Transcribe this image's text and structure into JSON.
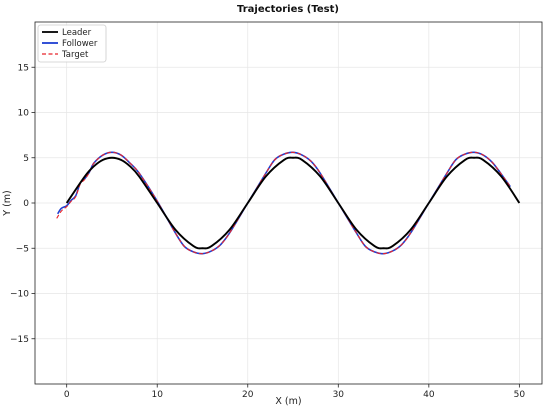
{
  "chart_data": {
    "type": "line",
    "title": "Trajectories (Test)",
    "xlabel": "X (m)",
    "ylabel": "Y (m)",
    "xlim": [
      -3.5,
      52.5
    ],
    "ylim": [
      -20,
      20
    ],
    "xticks": [
      0,
      10,
      20,
      30,
      40,
      50
    ],
    "yticks": [
      -15,
      -10,
      -5,
      0,
      5,
      10,
      15
    ],
    "grid": true,
    "legend_position": "top-left",
    "series": [
      {
        "name": "Leader",
        "color": "#000000",
        "style": "solid",
        "x": [
          0,
          2,
          3,
          4,
          5,
          6,
          7,
          8,
          10,
          12,
          14,
          15,
          16,
          18,
          20,
          22,
          24,
          25,
          26,
          28,
          30,
          32,
          34,
          35,
          36,
          38,
          40,
          42,
          44,
          45,
          46,
          48,
          50
        ],
        "y": [
          0,
          2.94,
          4.05,
          4.76,
          5.0,
          4.76,
          4.05,
          2.94,
          0,
          -2.94,
          -4.76,
          -5.0,
          -4.76,
          -2.94,
          0,
          2.94,
          4.76,
          5.0,
          4.76,
          2.94,
          0,
          -2.94,
          -4.76,
          -5.0,
          -4.76,
          -2.94,
          0,
          2.94,
          4.76,
          5.0,
          4.76,
          2.94,
          0
        ]
      },
      {
        "name": "Follower",
        "color": "#1f3fd1",
        "style": "solid",
        "x": [
          -1.0,
          -0.6,
          0.0,
          0.5,
          1.0,
          1.5,
          2.0,
          2.5,
          3.0,
          4.0,
          5.0,
          6.0,
          7.0,
          8.0,
          10.0,
          12.0,
          13.0,
          14.0,
          15.0,
          16.0,
          17.0,
          18.0,
          20.0,
          22.0,
          23.0,
          24.0,
          25.0,
          26.0,
          27.0,
          28.0,
          30.0,
          32.0,
          33.0,
          34.0,
          35.0,
          36.0,
          37.0,
          38.0,
          40.0,
          42.0,
          43.0,
          44.0,
          45.0,
          46.0,
          47.0,
          48.0,
          49.0
        ],
        "y": [
          -1.2,
          -0.6,
          -0.3,
          0.3,
          0.8,
          2.2,
          2.7,
          3.4,
          4.4,
          5.3,
          5.6,
          5.3,
          4.4,
          3.3,
          0.2,
          -3.3,
          -4.8,
          -5.4,
          -5.6,
          -5.3,
          -4.6,
          -3.3,
          0.0,
          3.3,
          4.8,
          5.4,
          5.6,
          5.3,
          4.6,
          3.3,
          0.0,
          -3.3,
          -4.8,
          -5.4,
          -5.6,
          -5.3,
          -4.6,
          -3.3,
          0.0,
          3.3,
          4.8,
          5.4,
          5.6,
          5.3,
          4.5,
          3.2,
          1.8
        ]
      },
      {
        "name": "Target",
        "color": "#e8242a",
        "style": "dashed",
        "x": [
          -1.1,
          -0.6,
          0.0,
          0.5,
          1.0,
          1.5,
          2.0,
          2.5,
          3.0,
          4.0,
          5.0,
          6.0,
          7.0,
          8.0,
          10.0,
          12.0,
          13.0,
          14.0,
          15.0,
          16.0,
          17.0,
          18.0,
          20.0,
          22.0,
          23.0,
          24.0,
          25.0,
          26.0,
          27.0,
          28.0,
          30.0,
          32.0,
          33.0,
          34.0,
          35.0,
          36.0,
          37.0,
          38.0,
          40.0,
          42.0,
          43.0,
          44.0,
          45.0,
          46.0,
          47.0,
          48.0,
          49.0
        ],
        "y": [
          -1.7,
          -0.9,
          -0.4,
          0.2,
          0.7,
          2.1,
          2.6,
          3.4,
          4.4,
          5.3,
          5.6,
          5.3,
          4.4,
          3.3,
          0.2,
          -3.3,
          -4.8,
          -5.4,
          -5.6,
          -5.3,
          -4.6,
          -3.3,
          0.0,
          3.3,
          4.8,
          5.4,
          5.6,
          5.3,
          4.6,
          3.3,
          0.0,
          -3.3,
          -4.8,
          -5.4,
          -5.6,
          -5.3,
          -4.6,
          -3.3,
          0.0,
          3.3,
          4.8,
          5.4,
          5.6,
          5.3,
          4.5,
          3.2,
          1.8
        ]
      }
    ]
  }
}
